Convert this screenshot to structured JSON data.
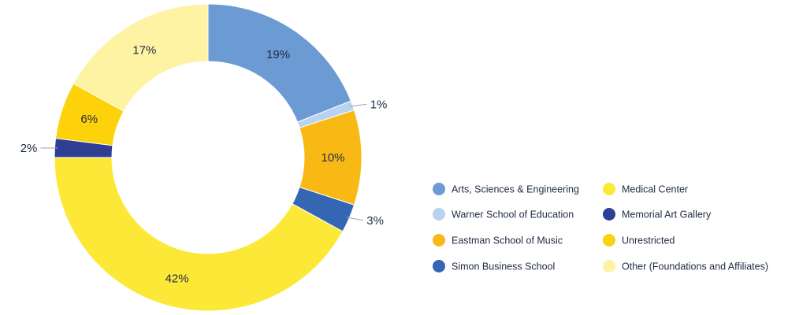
{
  "chart_data": {
    "type": "pie",
    "style": "donut",
    "categories": [
      "Arts, Sciences & Engineering",
      "Warner School of Education",
      "Eastman School of Music",
      "Simon Business School",
      "Medical Center",
      "Memorial Art Gallery",
      "Unrestricted",
      "Other (Foundations and Affiliates)"
    ],
    "values": [
      19,
      1,
      10,
      3,
      42,
      2,
      6,
      17
    ],
    "labels": [
      "19%",
      "1%",
      "10%",
      "3%",
      "42%",
      "2%",
      "6%",
      "17%"
    ],
    "colors": [
      "#6b9bd2",
      "#b8d3ef",
      "#f9b915",
      "#3466b4",
      "#fce937",
      "#2e3f94",
      "#fdd20a",
      "#fdf3a2"
    ],
    "legend_position": "right",
    "legend_order": [
      0,
      4,
      1,
      5,
      2,
      6,
      3,
      7
    ]
  }
}
